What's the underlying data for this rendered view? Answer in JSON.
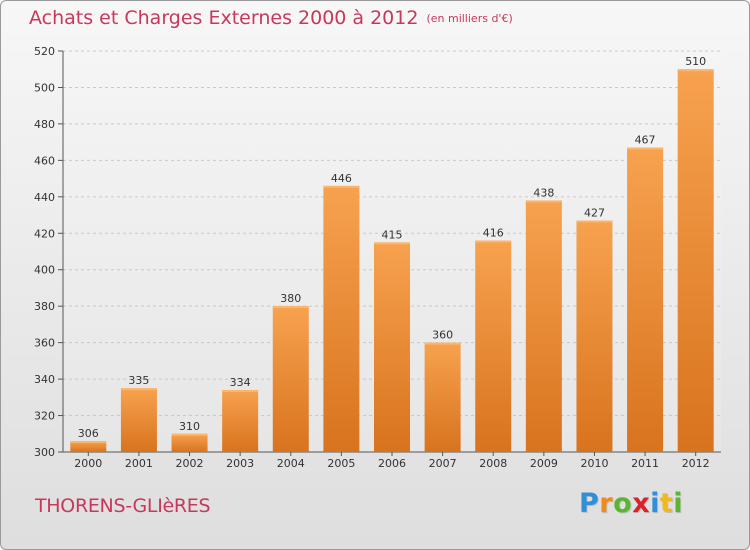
{
  "page": {
    "title": "Achats et Charges Externes 2000 à 2012",
    "subtitle": "(en milliers d'€)",
    "commune": "THORENS-GLIèRES",
    "logo": [
      "P",
      "r",
      "o",
      "x",
      "i",
      "t",
      "i"
    ]
  },
  "colors": {
    "title": "#c8385c",
    "bar_top": "#f7a24f",
    "bar_bottom": "#d8731e",
    "grid": "#c9c9c9",
    "logo": [
      "#2f8fd8",
      "#f08a1c",
      "#5bb532",
      "#d8232a",
      "#2f8fd8",
      "#f0b81c",
      "#5bb532"
    ]
  },
  "chart_data": {
    "type": "bar",
    "categories": [
      "2000",
      "2001",
      "2002",
      "2003",
      "2004",
      "2005",
      "2006",
      "2007",
      "2008",
      "2009",
      "2010",
      "2011",
      "2012"
    ],
    "values": [
      306,
      335,
      310,
      334,
      380,
      446,
      415,
      360,
      416,
      438,
      427,
      467,
      510
    ],
    "title": "Achats et Charges Externes 2000 à 2012",
    "ylim": [
      300,
      520
    ],
    "yticks": [
      300,
      320,
      340,
      360,
      380,
      400,
      420,
      440,
      460,
      480,
      500,
      520
    ],
    "grid": true,
    "legend": "none"
  }
}
